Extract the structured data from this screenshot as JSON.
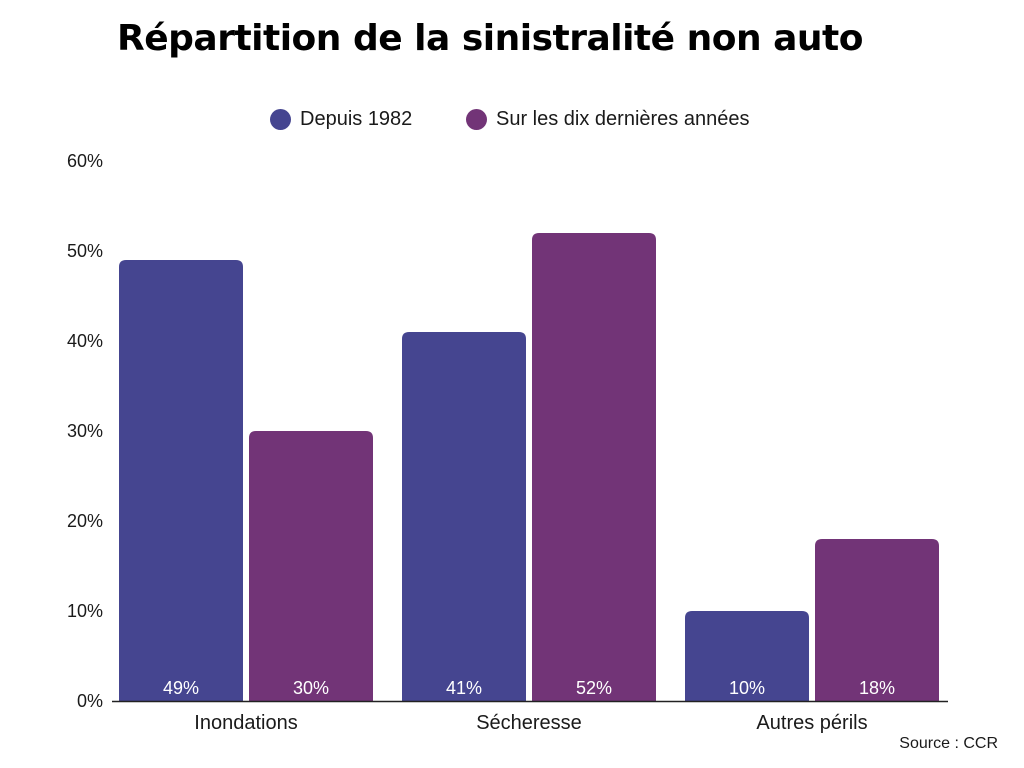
{
  "chart_data": {
    "type": "bar",
    "title": "Répartition de la sinistralité non auto",
    "xlabel": "",
    "ylabel": "",
    "categories": [
      "Inondations",
      "Sécheresse",
      "Autres périls"
    ],
    "series": [
      {
        "name": "Depuis 1982",
        "values": [
          49,
          41,
          10
        ],
        "color": "#454590"
      },
      {
        "name": "Sur les dix dernières années",
        "values": [
          30,
          52,
          18
        ],
        "color": "#723477"
      }
    ],
    "ylim": [
      0,
      60
    ],
    "yticks": [
      0,
      10,
      20,
      30,
      40,
      50,
      60
    ],
    "ytick_labels": [
      "0%",
      "10%",
      "20%",
      "30%",
      "40%",
      "50%",
      "60%"
    ],
    "value_suffix": "%",
    "grid": false,
    "legend_position": "top-center",
    "source": "Source : CCR"
  }
}
